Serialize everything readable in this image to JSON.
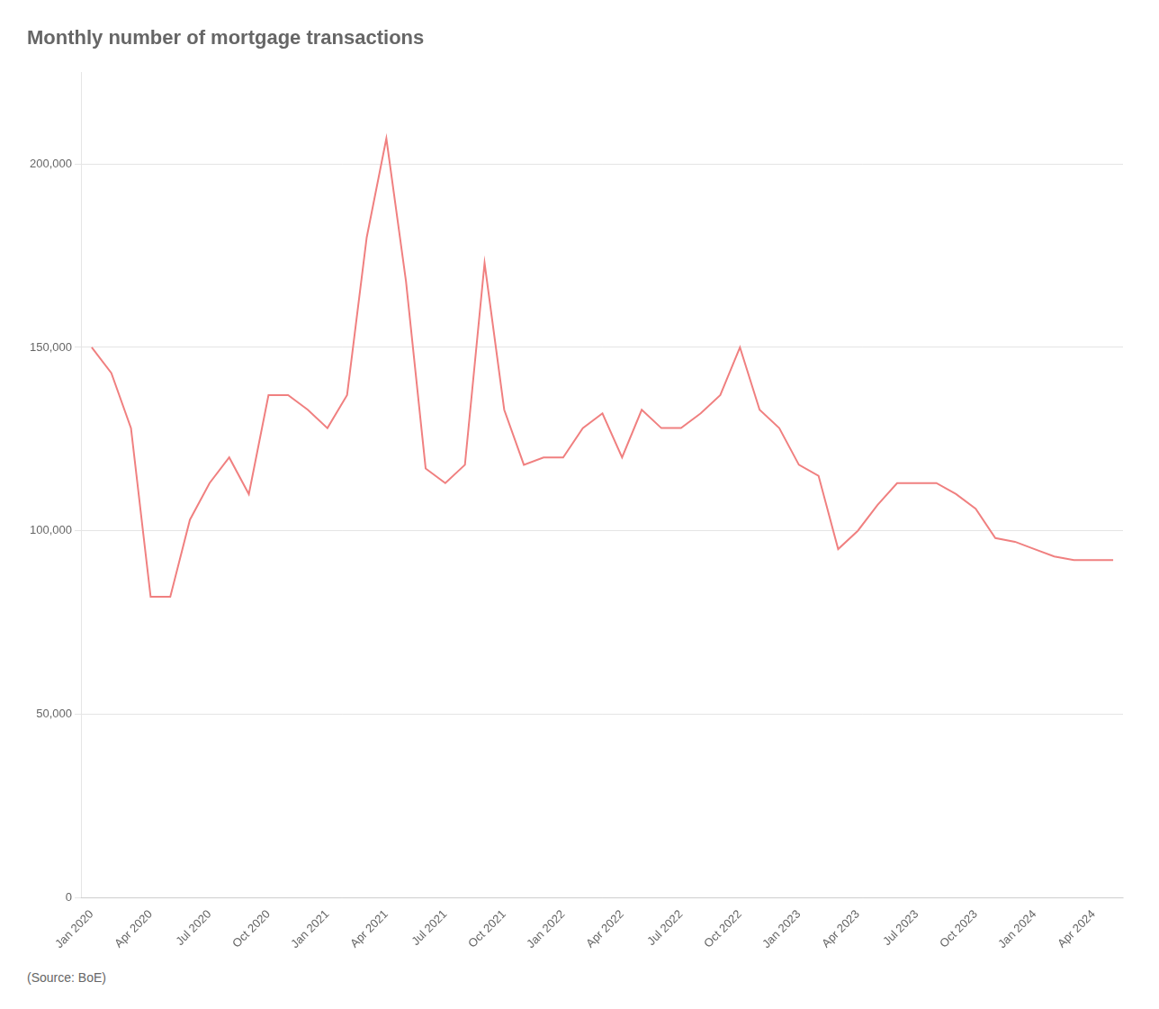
{
  "chart_data": {
    "type": "line",
    "title": "Monthly number of mortgage transactions",
    "annotations": [
      "(Source: BoE)"
    ],
    "color": "#f08080",
    "categories": [
      "Jan 2020",
      null,
      null,
      "Apr 2020",
      null,
      null,
      "Jul 2020",
      null,
      null,
      "Oct 2020",
      null,
      null,
      "Jan 2021",
      null,
      null,
      "Apr 2021",
      null,
      null,
      "Jul 2021",
      null,
      null,
      "Oct 2021",
      null,
      null,
      "Jan 2022",
      null,
      null,
      "Apr 2022",
      null,
      null,
      "Jul 2022",
      null,
      null,
      "Oct 2022",
      null,
      null,
      "Jan 2023",
      null,
      null,
      "Apr 2023",
      null,
      null,
      "Jul 2023",
      null,
      null,
      "Oct 2023",
      null,
      null,
      "Jan 2024",
      null,
      null,
      "Apr 2024",
      null
    ],
    "values": [
      150000,
      143000,
      128000,
      82000,
      82000,
      103000,
      113000,
      120000,
      110000,
      137000,
      137000,
      133000,
      128000,
      137000,
      180000,
      207000,
      168000,
      117000,
      113000,
      118000,
      173000,
      133000,
      118000,
      120000,
      120000,
      128000,
      132000,
      120000,
      133000,
      128000,
      128000,
      132000,
      137000,
      150000,
      133000,
      128000,
      118000,
      115000,
      95000,
      100000,
      107000,
      113000,
      113000,
      113000,
      110000,
      106000,
      98000,
      97000,
      95000,
      93000,
      92000,
      92000,
      92000
    ],
    "ylim": [
      0,
      225000
    ],
    "yticks": [
      0,
      {
        "value": 50000,
        "label": "50,000"
      },
      {
        "value": 100000,
        "label": "100,000"
      },
      {
        "value": 150000,
        "label": "150,000"
      },
      {
        "value": 200000,
        "label": "200,000"
      }
    ],
    "grid": true
  }
}
